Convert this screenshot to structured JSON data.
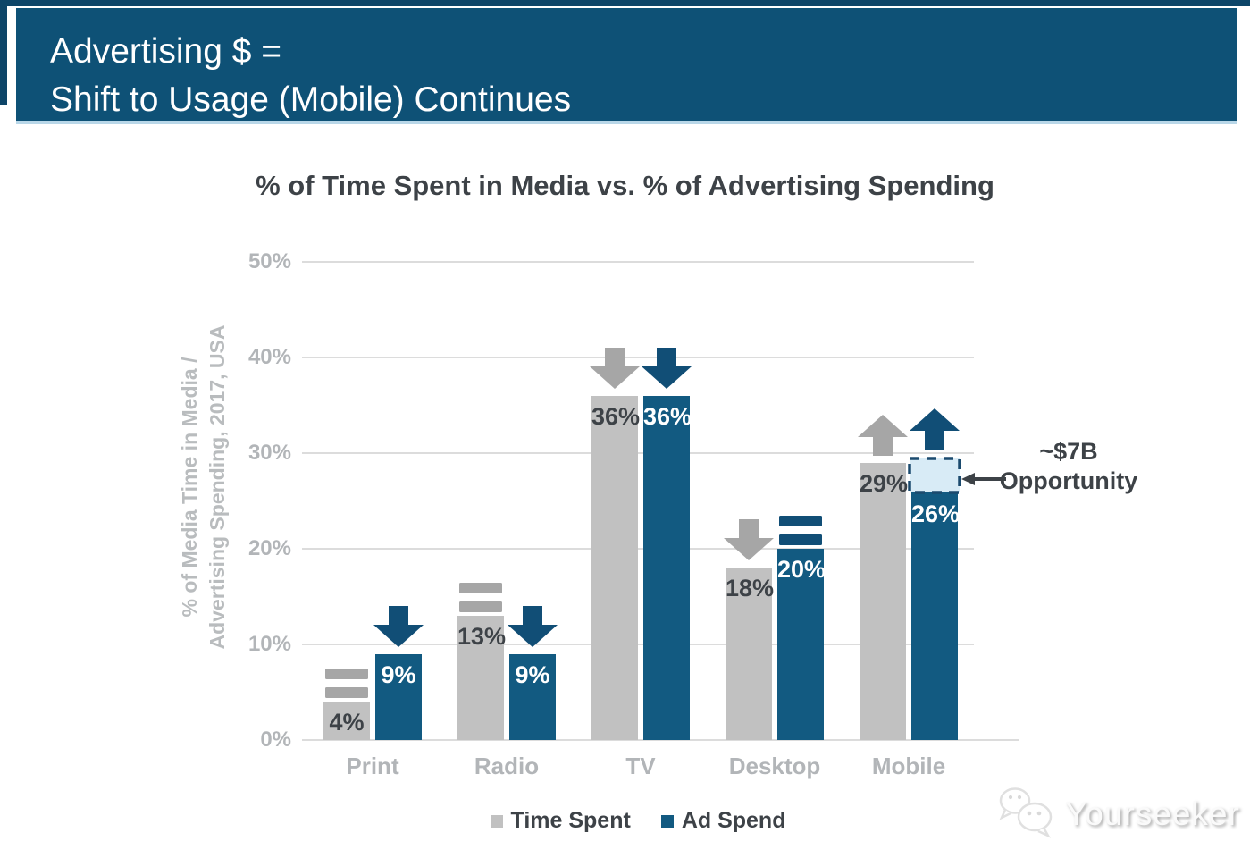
{
  "header": {
    "title_line1": "Advertising $ =",
    "title_line2": "Shift to Usage (Mobile) Continues"
  },
  "chart_data": {
    "type": "bar",
    "title": "% of Time Spent in Media vs. % of Advertising Spending",
    "ylabel": "% of Media Time in Media / Advertising Spending, 2017, USA",
    "ylabel_line1": "% of Media Time in Media /",
    "ylabel_line2": "Advertising Spending, 2017, USA",
    "categories": [
      "Print",
      "Radio",
      "TV",
      "Desktop",
      "Mobile"
    ],
    "ylim": [
      0,
      50
    ],
    "yticks": [
      50,
      40,
      30,
      20,
      10,
      0
    ],
    "ytick_labels": [
      "50%",
      "40%",
      "30%",
      "20%",
      "10%",
      "0%"
    ],
    "grid": true,
    "legend_position": "bottom",
    "series": [
      {
        "name": "Time Spent",
        "color": "#c1c1c1",
        "values": [
          4,
          13,
          36,
          18,
          29
        ],
        "labels": [
          "4%",
          "13%",
          "36%",
          "18%",
          "29%"
        ],
        "trends": [
          "flat",
          "flat",
          "down",
          "down",
          "up"
        ]
      },
      {
        "name": "Ad Spend",
        "color": "#125a81",
        "values": [
          9,
          9,
          36,
          20,
          26
        ],
        "labels": [
          "9%",
          "9%",
          "36%",
          "20%",
          "26%"
        ],
        "trends": [
          "down",
          "down",
          "down",
          "flat",
          "up"
        ]
      }
    ],
    "annotation": {
      "line1": "~$7B",
      "line2": "Opportunity",
      "category": "Mobile",
      "category_index": 4,
      "series": "Ad Spend",
      "box_range": [
        26,
        29
      ]
    }
  },
  "watermark": {
    "text": "Yourseeker"
  },
  "colors": {
    "banner_bg": "#0e5176",
    "banner_text": "#ffffff",
    "banner_edge": "#b9d7e8",
    "top_strip": "#0d4568",
    "bar_gray": "#c1c1c1",
    "bar_blue": "#125a81",
    "marker_gray": "#a6a6a6",
    "marker_blue": "#114e76",
    "box_fill": "#d8ebf6",
    "box_border": "#1b4a6e",
    "gridline": "#dcdcdc",
    "axis_text": "#b2b5b8",
    "label_dark": "#3d4247",
    "label_light": "#ffffff"
  }
}
